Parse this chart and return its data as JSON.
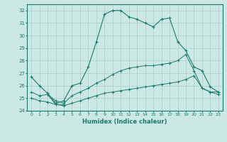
{
  "xlabel": "Humidex (Indice chaleur)",
  "x": [
    0,
    1,
    2,
    3,
    4,
    5,
    6,
    7,
    8,
    9,
    10,
    11,
    12,
    13,
    14,
    15,
    16,
    17,
    18,
    19,
    20,
    21,
    22,
    23
  ],
  "line1": [
    26.7,
    26.0,
    25.4,
    24.6,
    24.8,
    26.0,
    26.2,
    27.5,
    29.5,
    31.7,
    32.0,
    32.0,
    31.5,
    31.3,
    31.0,
    30.7,
    31.3,
    31.4,
    29.5,
    28.8,
    27.5,
    27.2,
    25.9,
    25.5
  ],
  "line2": [
    25.5,
    25.2,
    25.3,
    24.8,
    24.6,
    25.2,
    25.5,
    25.8,
    26.2,
    26.5,
    26.9,
    27.2,
    27.4,
    27.5,
    27.6,
    27.6,
    27.7,
    27.8,
    28.0,
    28.5,
    27.2,
    25.8,
    25.5,
    25.5
  ],
  "line3": [
    25.0,
    24.8,
    24.7,
    24.5,
    24.4,
    24.6,
    24.8,
    25.0,
    25.2,
    25.4,
    25.5,
    25.6,
    25.7,
    25.8,
    25.9,
    26.0,
    26.1,
    26.2,
    26.3,
    26.5,
    26.8,
    25.8,
    25.5,
    25.3
  ],
  "line4": [
    null,
    null,
    25.3,
    24.5,
    24.5,
    null,
    null,
    null,
    null,
    null,
    null,
    null,
    null,
    null,
    null,
    null,
    null,
    null,
    null,
    null,
    null,
    null,
    null,
    null
  ],
  "xlim": [
    -0.5,
    23.5
  ],
  "ylim": [
    24,
    32.5
  ],
  "yticks": [
    24,
    25,
    26,
    27,
    28,
    29,
    30,
    31,
    32
  ],
  "line_color": "#1a7a6a",
  "bg_color": "#cce8e4",
  "grid_color": "#aacfcb"
}
